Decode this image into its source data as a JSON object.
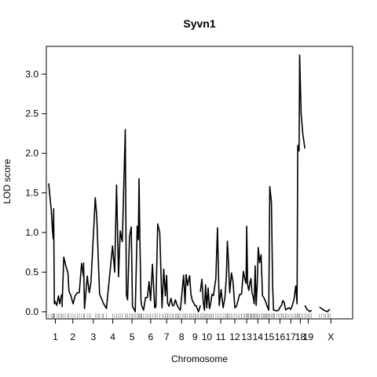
{
  "chart_data": {
    "type": "line",
    "title": "Syvn1",
    "xlabel": "Chromosome",
    "ylabel": "LOD score",
    "ylim": [
      -0.09,
      3.35
    ],
    "y_ticks": [
      0.0,
      0.5,
      1.0,
      1.5,
      2.0,
      2.5,
      3.0
    ],
    "y_tick_labels": [
      "0.0",
      "0.5",
      "1.0",
      "1.5",
      "2.0",
      "2.5",
      "3.0"
    ],
    "grid": false,
    "legend": "none",
    "line_color": "#000000",
    "chromosomes": [
      {
        "label": "1",
        "range": [
          0,
          17.4
        ],
        "points": [
          [
            0,
            1.62
          ],
          [
            3.2,
            1.3
          ],
          [
            5.3,
            0.98
          ],
          [
            5.9,
            0.92
          ],
          [
            6.4,
            1.3
          ],
          [
            7.3,
            0.1
          ],
          [
            7.8,
            0.14
          ],
          [
            10.5,
            0.08
          ],
          [
            12.7,
            0.2
          ],
          [
            14.5,
            0.1
          ],
          [
            16.8,
            0.22
          ]
        ]
      },
      {
        "label": "2",
        "range": [
          17.4,
          45.3
        ],
        "points": [
          [
            0,
            0.06
          ],
          [
            2.2,
            0.69
          ],
          [
            4.9,
            0.58
          ],
          [
            7.6,
            0.49
          ],
          [
            8.9,
            0.26
          ],
          [
            11.5,
            0.2
          ],
          [
            14.2,
            0.1
          ],
          [
            16.9,
            0.2
          ],
          [
            19.8,
            0.24
          ],
          [
            22.3,
            0.24
          ],
          [
            25.4,
            0.61
          ],
          [
            27.9,
            0.44
          ]
        ]
      },
      {
        "label": "3",
        "range": [
          45.3,
          70.8
        ],
        "points": [
          [
            0,
            0.62
          ],
          [
            1.2,
            0.04
          ],
          [
            4.8,
            0.45
          ],
          [
            7.4,
            0.24
          ],
          [
            9.6,
            0.37
          ],
          [
            15.2,
            1.44
          ],
          [
            17.2,
            1.2
          ],
          [
            19.3,
            0.62
          ],
          [
            20.8,
            0.22
          ],
          [
            24.1,
            0.15
          ],
          [
            25.5,
            0.11
          ]
        ]
      },
      {
        "label": "4",
        "range": [
          70.8,
          95.7
        ],
        "points": [
          [
            0,
            0.11
          ],
          [
            4.2,
            0.04
          ],
          [
            12.2,
            0.83
          ],
          [
            14.9,
            0.5
          ],
          [
            17.4,
            1.6
          ],
          [
            20.0,
            0.44
          ],
          [
            22.2,
            1.02
          ],
          [
            24.9,
            0.88
          ]
        ]
      },
      {
        "label": "5",
        "range": [
          95.7,
          120.9
        ],
        "points": [
          [
            0,
            0.88
          ],
          [
            3.8,
            2.3
          ],
          [
            5.3,
            0.22
          ],
          [
            6.8,
            0.15
          ],
          [
            9.3,
            0.95
          ],
          [
            11.6,
            1.07
          ],
          [
            13.2,
            0.06
          ],
          [
            15.0,
            0.04
          ],
          [
            16.8,
            0.0
          ],
          [
            19.3,
            1.08
          ],
          [
            20.8,
            0.91
          ],
          [
            21.7,
            1.68
          ],
          [
            22.8,
            0.91
          ],
          [
            24.2,
            0.14
          ],
          [
            25.2,
            0.08
          ]
        ]
      },
      {
        "label": "6",
        "range": [
          120.9,
          144.3
        ],
        "points": [
          [
            0,
            0.08
          ],
          [
            2.4,
            0.02
          ],
          [
            5.0,
            0.18
          ],
          [
            7.4,
            0.18
          ],
          [
            9.6,
            0.38
          ],
          [
            11.5,
            0.14
          ],
          [
            14.0,
            0.6
          ],
          [
            16.9,
            0.05
          ],
          [
            18.3,
            0.06
          ],
          [
            20.8,
            1.11
          ],
          [
            23.4,
            1.0
          ]
        ]
      },
      {
        "label": "7",
        "range": [
          144.3,
          162.3
        ],
        "points": [
          [
            0,
            1.0
          ],
          [
            3.0,
            0.05
          ],
          [
            5.3,
            0.54
          ],
          [
            7.3,
            0.2
          ],
          [
            8.9,
            0.46
          ],
          [
            10.3,
            0.11
          ],
          [
            12.0,
            0.07
          ],
          [
            14.6,
            0.17
          ],
          [
            16.7,
            0.07
          ]
        ]
      },
      {
        "label": "8",
        "range": [
          162.3,
          183.1
        ],
        "points": [
          [
            0,
            0.07
          ],
          [
            2.4,
            0.15
          ],
          [
            4.0,
            0.1
          ],
          [
            5.8,
            0.06
          ],
          [
            7.0,
            0.04
          ],
          [
            8.8,
            0.02
          ],
          [
            11.3,
            0.28
          ],
          [
            13.1,
            0.46
          ],
          [
            14.9,
            0.1
          ],
          [
            16.3,
            0.47
          ],
          [
            18.2,
            0.33
          ],
          [
            20.8,
            0.46
          ]
        ]
      },
      {
        "label": "9",
        "range": [
          183.1,
          197.1
        ],
        "points": [
          [
            0,
            0.46
          ],
          [
            1.8,
            0.22
          ],
          [
            3.6,
            0.14
          ],
          [
            5.4,
            0.11
          ],
          [
            6.9,
            0.08
          ],
          [
            8.3,
            0.08
          ],
          [
            10.0,
            0.04
          ],
          [
            11.6,
            0.0
          ],
          [
            14.0,
            0.08
          ]
        ]
      },
      {
        "label": "10",
        "range": [
          197.1,
          214.1
        ],
        "points": [
          [
            0,
            0.25
          ],
          [
            2.0,
            0.41
          ],
          [
            3.8,
            0.12
          ],
          [
            5.3,
            0.02
          ],
          [
            6.8,
            0.34
          ],
          [
            8.4,
            0.05
          ],
          [
            10.1,
            0.3
          ],
          [
            11.9,
            0.04
          ],
          [
            13.4,
            0.1
          ],
          [
            15.1,
            0.22
          ],
          [
            17.0,
            0.2
          ]
        ]
      },
      {
        "label": "11",
        "range": [
          214.1,
          233.1
        ],
        "points": [
          [
            0,
            0.2
          ],
          [
            3.1,
            0.42
          ],
          [
            5.3,
            1.06
          ],
          [
            7.5,
            0.08
          ],
          [
            10.0,
            0.28
          ],
          [
            12.6,
            0.05
          ],
          [
            15.0,
            0.18
          ],
          [
            16.8,
            0.44
          ],
          [
            18.1,
            0.89
          ],
          [
            19.0,
            0.76
          ]
        ]
      },
      {
        "label": "12",
        "range": [
          233.1,
          250.6
        ],
        "points": [
          [
            0,
            0.76
          ],
          [
            2.2,
            0.24
          ],
          [
            4.4,
            0.49
          ],
          [
            6.6,
            0.37
          ],
          [
            8.8,
            0.05
          ],
          [
            11.0,
            0.07
          ],
          [
            13.2,
            0.15
          ],
          [
            15.2,
            0.22
          ],
          [
            17.5,
            0.22
          ]
        ]
      },
      {
        "label": "13",
        "range": [
          250.6,
          264.1
        ],
        "points": [
          [
            0,
            0.22
          ],
          [
            2.5,
            0.51
          ],
          [
            4.2,
            0.42
          ],
          [
            5.9,
            0.36
          ],
          [
            6.8,
            1.08
          ],
          [
            8.0,
            0.34
          ],
          [
            9.4,
            0.27
          ],
          [
            11.0,
            0.37
          ],
          [
            12.3,
            0.42
          ],
          [
            13.5,
            0.25
          ]
        ]
      },
      {
        "label": "14",
        "range": [
          264.1,
          279.6
        ],
        "points": [
          [
            0,
            0.25
          ],
          [
            1.8,
            0.18
          ],
          [
            3.0,
            0.1
          ],
          [
            4.3,
            0.58
          ],
          [
            5.5,
            0.08
          ],
          [
            6.9,
            0.34
          ],
          [
            8.3,
            0.81
          ],
          [
            10.0,
            0.62
          ],
          [
            11.9,
            0.72
          ],
          [
            13.8,
            0.2
          ],
          [
            15.5,
            0.18
          ]
        ]
      },
      {
        "label": "15",
        "range": [
          279.6,
          293.2
        ],
        "points": [
          [
            0,
            0.18
          ],
          [
            1.3,
            0.15
          ],
          [
            2.7,
            0.12
          ],
          [
            4.0,
            0.08
          ],
          [
            5.2,
            0.05
          ],
          [
            6.4,
            0.02
          ],
          [
            7.8,
            1.58
          ],
          [
            9.9,
            1.38
          ],
          [
            11.4,
            0.33
          ],
          [
            12.7,
            0.02
          ],
          [
            13.6,
            0.02
          ]
        ]
      },
      {
        "label": "16",
        "range": [
          293.2,
          308.0
        ],
        "points": [
          [
            0,
            0.02
          ],
          [
            3.0,
            0.01
          ],
          [
            5.6,
            0.02
          ],
          [
            7.6,
            0.06
          ],
          [
            9.4,
            0.08
          ],
          [
            11.0,
            0.14
          ],
          [
            12.8,
            0.12
          ],
          [
            14.8,
            0.02
          ]
        ]
      },
      {
        "label": "17",
        "range": [
          308.0,
          321.2
        ],
        "points": [
          [
            0,
            0.02
          ],
          [
            2.1,
            0.04
          ],
          [
            4.3,
            0.05
          ],
          [
            6.5,
            0.03
          ],
          [
            8.7,
            0.08
          ],
          [
            10.9,
            0.16
          ],
          [
            13.2,
            0.33
          ]
        ]
      },
      {
        "label": "18",
        "range": [
          321.2,
          333.0
        ],
        "points": [
          [
            0,
            0.33
          ],
          [
            1.6,
            0.1
          ],
          [
            2.5,
            2.1
          ],
          [
            4.2,
            2.03
          ],
          [
            5.0,
            3.24
          ],
          [
            6.9,
            2.5
          ],
          [
            9.1,
            2.24
          ],
          [
            11.8,
            2.06
          ]
        ]
      },
      {
        "label": "19",
        "range": [
          333.0,
          341.6
        ],
        "points": [
          [
            0,
            0.08
          ],
          [
            2.5,
            0.03
          ],
          [
            4.5,
            0.02
          ],
          [
            6.4,
            0.0
          ],
          [
            8.6,
            0.02
          ]
        ]
      },
      {
        "label": "X",
        "range": [
          341.6,
          392.0
        ],
        "points": [
          [
            10.3,
            0.06
          ],
          [
            13.1,
            0.04
          ],
          [
            16.2,
            0.02
          ],
          [
            18.1,
            0.01
          ],
          [
            20.8,
            0.0
          ],
          [
            22.3,
            0.02
          ],
          [
            24.1,
            0.03
          ]
        ]
      }
    ]
  }
}
